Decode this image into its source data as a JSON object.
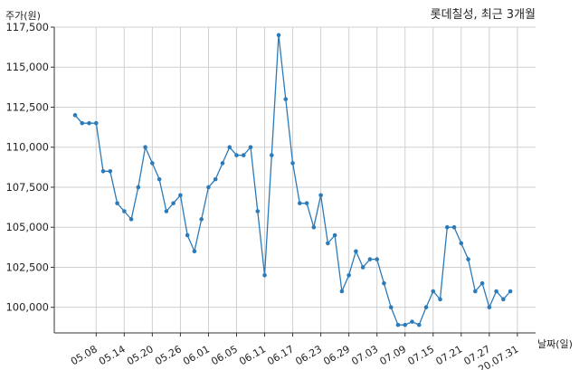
{
  "chart_data": {
    "type": "line",
    "title": "롯데칠성, 최근 3개월",
    "ylabel": "주가(원)",
    "xlabel": "날짜(일)",
    "ylim": [
      98400,
      117500
    ],
    "yticks": [
      100000,
      102500,
      105000,
      107500,
      110000,
      112500,
      115000,
      117500
    ],
    "ytick_labels": [
      "100,000",
      "102,500",
      "105,000",
      "107,500",
      "110,000",
      "112,500",
      "115,000",
      "117,500"
    ],
    "xtick_labels": [
      "05.08",
      "05.14",
      "05.20",
      "05.26",
      "06.01",
      "06.05",
      "06.11",
      "06.17",
      "06.23",
      "06.29",
      "07.03",
      "07.09",
      "07.15",
      "07.21",
      "07.27",
      "20.07.31"
    ],
    "xtick_indices": [
      3,
      7,
      11,
      15,
      19,
      23,
      27,
      31,
      35,
      39,
      43,
      47,
      51,
      55,
      59,
      63
    ],
    "grid": true,
    "color": "#2b7bba",
    "series": [
      {
        "values": [
          112000,
          111500,
          111500,
          111500,
          108500,
          108500,
          106500,
          106000,
          105500,
          107500,
          110000,
          109000,
          108000,
          106000,
          106500,
          107000,
          104500,
          103500,
          105500,
          107500,
          108000,
          109000,
          110000,
          109500,
          109500,
          110000,
          106000,
          102000,
          109500,
          117000,
          113000,
          109000,
          106500,
          106500,
          105000,
          107000,
          104000,
          104500,
          101000,
          102000,
          103500,
          102500,
          103000,
          103000,
          101500,
          100000,
          98900,
          98900,
          99100,
          98900,
          100000,
          101000,
          100500,
          105000,
          105000,
          104000,
          103000,
          101000,
          101500,
          100000,
          101000,
          100500,
          101000
        ]
      }
    ]
  }
}
